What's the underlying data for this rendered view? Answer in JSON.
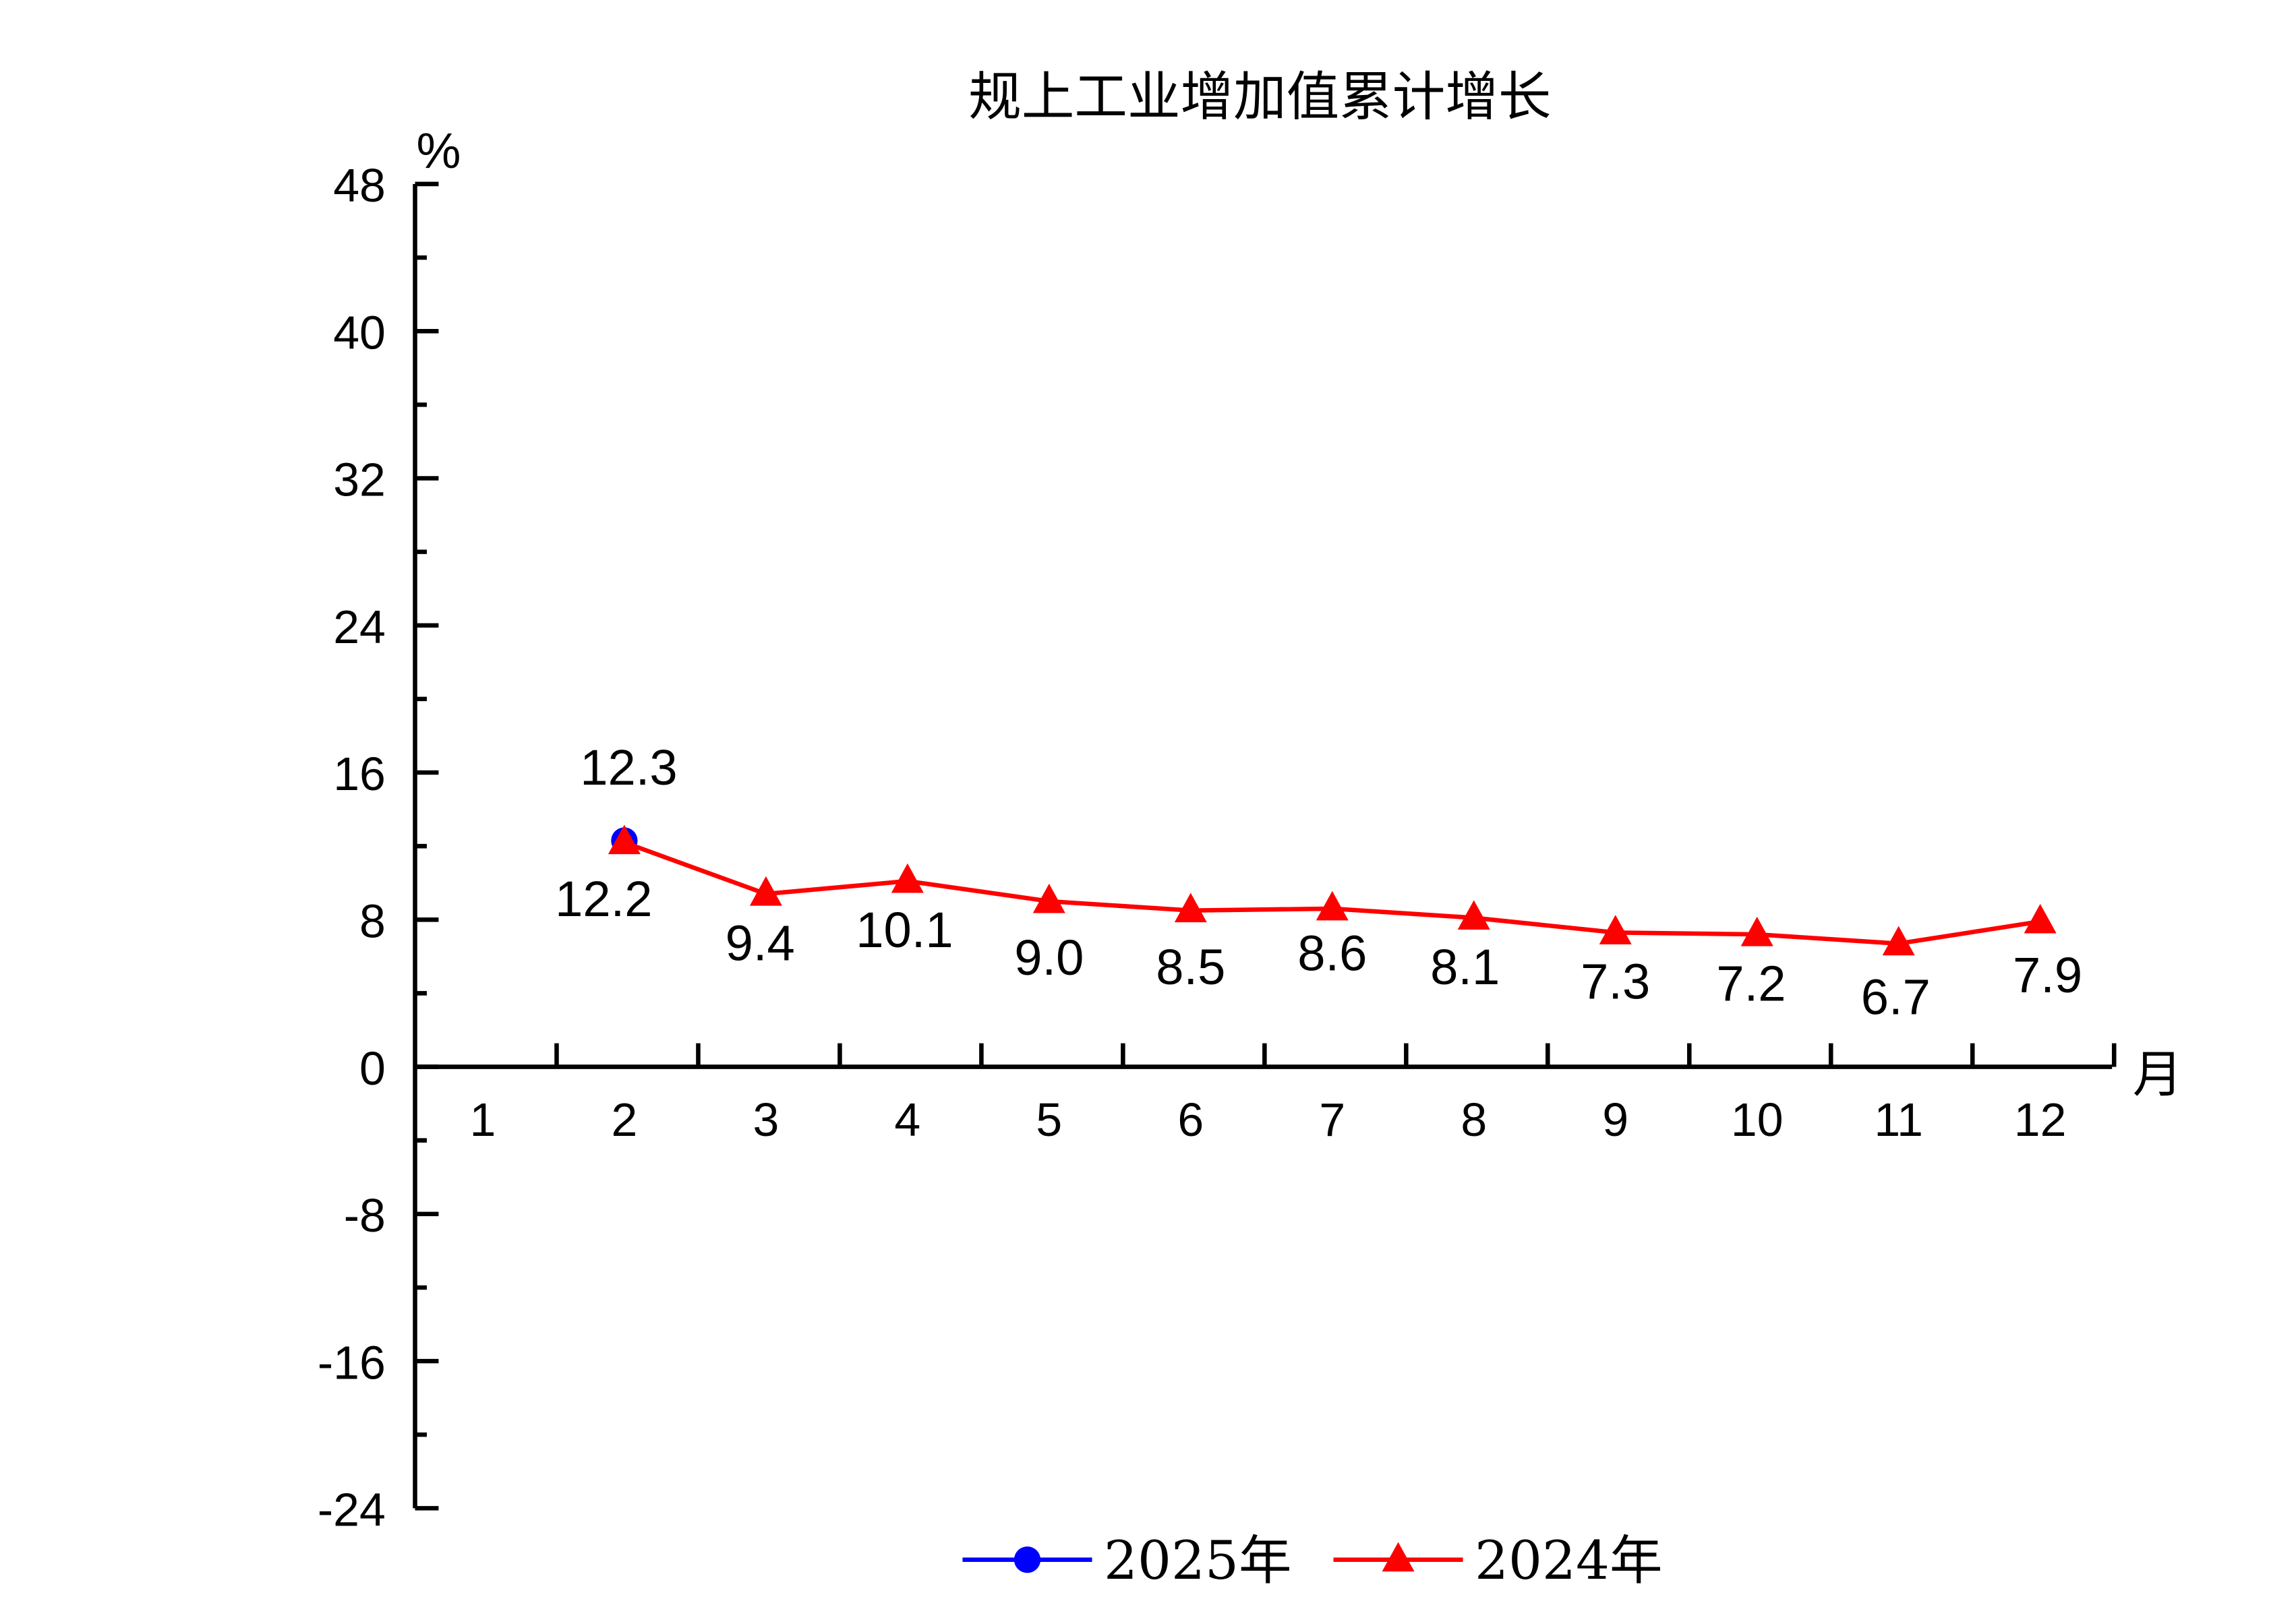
{
  "chart_data": {
    "type": "line",
    "title": "规上工业增加值累计增长",
    "ylabel": "%",
    "xlabel": "月",
    "ylim": [
      -24,
      48
    ],
    "yticks": [
      48,
      40,
      32,
      24,
      16,
      8,
      0,
      -8,
      -16,
      -24
    ],
    "categories": [
      "1",
      "2",
      "3",
      "4",
      "5",
      "6",
      "7",
      "8",
      "9",
      "10",
      "11",
      "12"
    ],
    "legend_position": "bottom",
    "series": [
      {
        "name": "2025年",
        "color": "#0000ff",
        "marker": "circle",
        "values": [
          null,
          12.3,
          null,
          null,
          null,
          null,
          null,
          null,
          null,
          null,
          null,
          null
        ],
        "labels": [
          null,
          "12.3",
          null,
          null,
          null,
          null,
          null,
          null,
          null,
          null,
          null,
          null
        ]
      },
      {
        "name": "2024年",
        "color": "#ff0000",
        "marker": "triangle",
        "values": [
          null,
          12.2,
          9.4,
          10.1,
          9.0,
          8.5,
          8.6,
          8.1,
          7.3,
          7.2,
          6.7,
          7.9
        ],
        "labels": [
          null,
          "12.2",
          "9.4",
          "10.1",
          "9.0",
          "8.5",
          "8.6",
          "8.1",
          "7.3",
          "7.2",
          "6.7",
          "7.9"
        ]
      }
    ]
  }
}
